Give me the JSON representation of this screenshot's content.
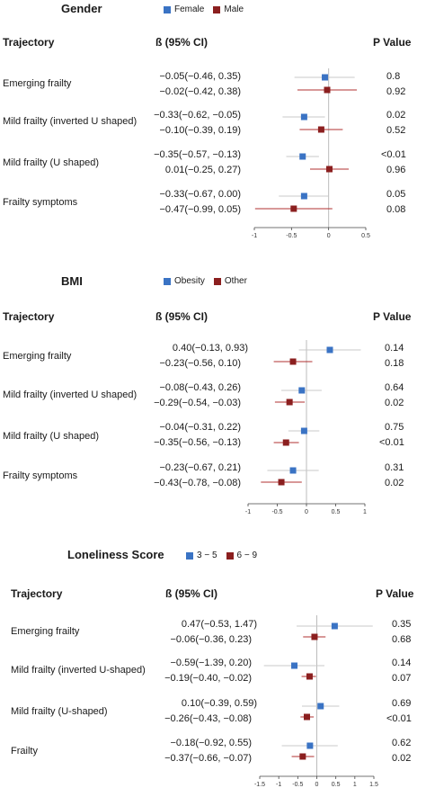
{
  "colors": {
    "series_a": "#3a73c4",
    "series_b": "#8b1f1f",
    "ci_a": "#c8c8c8",
    "ci_b": "#b03030",
    "zero_line": "#bbbbbb"
  },
  "panels": [
    {
      "title": "Gender",
      "legend": [
        "Female",
        "Male"
      ],
      "headers": {
        "trajectory": "Trajectory",
        "beta": "ß (95% CI)",
        "pvalue": "P Value"
      },
      "rows": [
        {
          "label": "Emerging frailty",
          "a": {
            "text": "−0.05(−0.46, 0.35)",
            "p": "0.8"
          },
          "b": {
            "text": "−0.02(−0.42, 0.38)",
            "p": "0.92"
          }
        },
        {
          "label": "Mild frailty (inverted U shaped)",
          "a": {
            "text": "−0.33(−0.62, −0.05)",
            "p": "0.02"
          },
          "b": {
            "text": "−0.10(−0.39, 0.19)",
            "p": "0.52"
          }
        },
        {
          "label": "Mild frailty (U shaped)",
          "a": {
            "text": "−0.35(−0.57, −0.13)",
            "p": "<0.01"
          },
          "b": {
            "text": "0.01(−0.25, 0.27)",
            "p": "0.96"
          }
        },
        {
          "label": "Frailty symptoms",
          "a": {
            "text": "−0.33(−0.67, 0.00)",
            "p": "0.05"
          },
          "b": {
            "text": "−0.47(−0.99, 0.05)",
            "p": "0.08"
          }
        }
      ],
      "axis_ticks": [
        "-1",
        "-0.5",
        "0",
        "0.5"
      ]
    },
    {
      "title": "BMI",
      "legend": [
        "Obesity",
        "Other"
      ],
      "headers": {
        "trajectory": "Trajectory",
        "beta": "ß (95% CI)",
        "pvalue": "P Value"
      },
      "rows": [
        {
          "label": "Emerging frailty",
          "a": {
            "text": "0.40(−0.13, 0.93)",
            "p": "0.14"
          },
          "b": {
            "text": "−0.23(−0.56, 0.10)",
            "p": "0.18"
          }
        },
        {
          "label": "Mild frailty (inverted U shaped)",
          "a": {
            "text": "−0.08(−0.43, 0.26)",
            "p": "0.64"
          },
          "b": {
            "text": "−0.29(−0.54, −0.03)",
            "p": "0.02"
          }
        },
        {
          "label": "Mild frailty (U shaped)",
          "a": {
            "text": "−0.04(−0.31, 0.22)",
            "p": "0.75"
          },
          "b": {
            "text": "−0.35(−0.56, −0.13)",
            "p": "<0.01"
          }
        },
        {
          "label": "Frailty symptoms",
          "a": {
            "text": "−0.23(−0.67, 0.21)",
            "p": "0.31"
          },
          "b": {
            "text": "−0.43(−0.78, −0.08)",
            "p": "0.02"
          }
        }
      ],
      "axis_ticks": [
        "-1",
        "-0.5",
        "0",
        "0.5",
        "1"
      ]
    },
    {
      "title": "Loneliness Score",
      "legend": [
        "3 − 5",
        "6 − 9"
      ],
      "headers": {
        "trajectory": "Trajectory",
        "beta": "ß (95% CI)",
        "pvalue": "P Value"
      },
      "rows": [
        {
          "label": "Emerging frailty",
          "a": {
            "text": "0.47(−0.53, 1.47)",
            "p": "0.35"
          },
          "b": {
            "text": "−0.06(−0.36, 0.23)",
            "p": "0.68"
          }
        },
        {
          "label": "Mild frailty (inverted U-shaped)",
          "a": {
            "text": "−0.59(−1.39, 0.20)",
            "p": "0.14"
          },
          "b": {
            "text": "−0.19(−0.40, −0.02)",
            "p": "0.07"
          }
        },
        {
          "label": "Mild frailty (U-shaped)",
          "a": {
            "text": "0.10(−0.39, 0.59)",
            "p": "0.69"
          },
          "b": {
            "text": "−0.26(−0.43, −0.08)",
            "p": "<0.01"
          }
        },
        {
          "label": "Frailty",
          "a": {
            "text": "−0.18(−0.92, 0.55)",
            "p": "0.62"
          },
          "b": {
            "text": "−0.37(−0.66, −0.07)",
            "p": "0.02"
          }
        }
      ],
      "axis_ticks": [
        "-1.5",
        "-1",
        "-0.5",
        "0",
        "0.5",
        "1",
        "1.5"
      ]
    }
  ],
  "chart_data": [
    {
      "type": "scatter",
      "title": "Gender",
      "xlim": [
        -1,
        0.5
      ],
      "categories": [
        "Emerging frailty",
        "Mild frailty (inverted U shaped)",
        "Mild frailty (U shaped)",
        "Frailty symptoms"
      ],
      "series": [
        {
          "name": "Female",
          "estimate": [
            -0.05,
            -0.33,
            -0.35,
            -0.33
          ],
          "lower": [
            -0.46,
            -0.62,
            -0.57,
            -0.67
          ],
          "upper": [
            0.35,
            -0.05,
            -0.13,
            0.0
          ]
        },
        {
          "name": "Male",
          "estimate": [
            -0.02,
            -0.1,
            0.01,
            -0.47
          ],
          "lower": [
            -0.42,
            -0.39,
            -0.25,
            -0.99
          ],
          "upper": [
            0.38,
            0.19,
            0.27,
            0.05
          ]
        }
      ]
    },
    {
      "type": "scatter",
      "title": "BMI",
      "xlim": [
        -1,
        1
      ],
      "categories": [
        "Emerging frailty",
        "Mild frailty (inverted U shaped)",
        "Mild frailty (U shaped)",
        "Frailty symptoms"
      ],
      "series": [
        {
          "name": "Obesity",
          "estimate": [
            0.4,
            -0.08,
            -0.04,
            -0.23
          ],
          "lower": [
            -0.13,
            -0.43,
            -0.31,
            -0.67
          ],
          "upper": [
            0.93,
            0.26,
            0.22,
            0.21
          ]
        },
        {
          "name": "Other",
          "estimate": [
            -0.23,
            -0.29,
            -0.35,
            -0.43
          ],
          "lower": [
            -0.56,
            -0.54,
            -0.56,
            -0.78
          ],
          "upper": [
            0.1,
            -0.03,
            -0.13,
            -0.08
          ]
        }
      ]
    },
    {
      "type": "scatter",
      "title": "Loneliness Score",
      "xlim": [
        -1.5,
        1.5
      ],
      "categories": [
        "Emerging frailty",
        "Mild frailty (inverted U-shaped)",
        "Mild frailty (U-shaped)",
        "Frailty"
      ],
      "series": [
        {
          "name": "3 − 5",
          "estimate": [
            0.47,
            -0.59,
            0.1,
            -0.18
          ],
          "lower": [
            -0.53,
            -1.39,
            -0.39,
            -0.92
          ],
          "upper": [
            1.47,
            0.2,
            0.59,
            0.55
          ]
        },
        {
          "name": "6 − 9",
          "estimate": [
            -0.06,
            -0.19,
            -0.26,
            -0.37
          ],
          "lower": [
            -0.36,
            -0.4,
            -0.43,
            -0.66
          ],
          "upper": [
            0.23,
            -0.02,
            -0.08,
            -0.07
          ]
        }
      ]
    }
  ]
}
